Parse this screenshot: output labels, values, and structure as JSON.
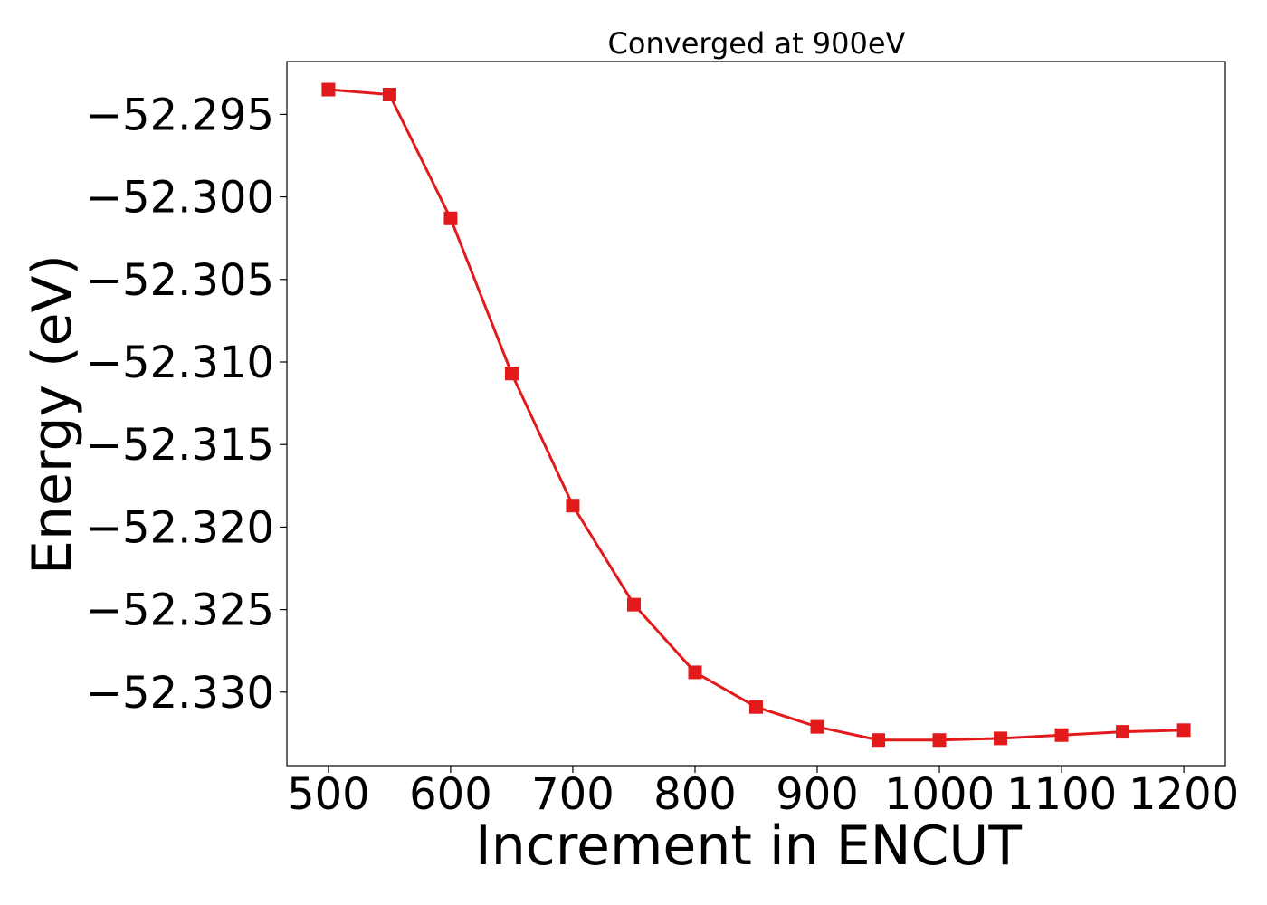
{
  "colors": {
    "series": "#e31a1c",
    "axes": "#000000",
    "background": "#ffffff"
  },
  "chart_data": {
    "type": "line",
    "title": "Converged at 900eV",
    "xlabel": "Increment in ENCUT",
    "ylabel": "Energy (eV)",
    "xlim": [
      466,
      1234
    ],
    "ylim": [
      -52.33445,
      -52.2918
    ],
    "xticks": [
      500,
      600,
      700,
      800,
      900,
      1000,
      1100,
      1200
    ],
    "xtick_labels": [
      "500",
      "600",
      "700",
      "800",
      "900",
      "1000",
      "1100",
      "1200"
    ],
    "yticks": [
      -52.295,
      -52.3,
      -52.305,
      -52.31,
      -52.315,
      -52.32,
      -52.325,
      -52.33
    ],
    "ytick_labels": [
      "−52.295",
      "−52.300",
      "−52.305",
      "−52.310",
      "−52.315",
      "−52.320",
      "−52.325",
      "−52.330"
    ],
    "grid": false,
    "marker": "square",
    "series": [
      {
        "x": [
          500,
          550,
          600,
          650,
          700,
          750,
          800,
          850,
          900,
          950,
          1000,
          1050,
          1100,
          1150,
          1200
        ],
        "y": [
          -52.2935,
          -52.2938,
          -52.3013,
          -52.3107,
          -52.3187,
          -52.3247,
          -52.3288,
          -52.3309,
          -52.3321,
          -52.3329,
          -52.3329,
          -52.3328,
          -52.3326,
          -52.3324,
          -52.3323
        ]
      }
    ]
  }
}
